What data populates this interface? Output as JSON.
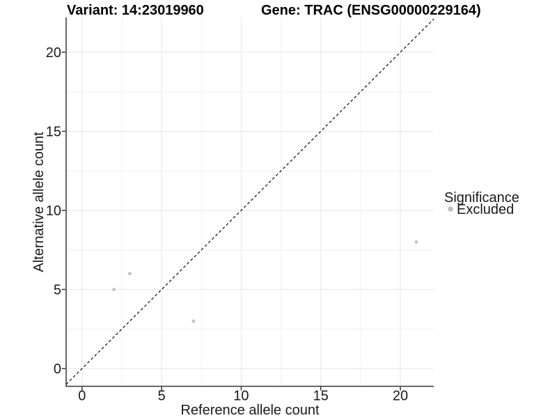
{
  "chart_data": {
    "type": "scatter",
    "titles": {
      "left": "Variant: 14:23019960",
      "right": "Gene: TRAC (ENSG00000229164)"
    },
    "xlabel": "Reference allele count",
    "ylabel": "Alternative allele count",
    "x_ticks": [
      0,
      5,
      10,
      15,
      20
    ],
    "y_ticks": [
      0,
      5,
      10,
      15,
      20
    ],
    "x_minor_gridlines": [
      2.5,
      7.5,
      12.5,
      17.5
    ],
    "y_minor_gridlines": [
      2.5,
      7.5,
      12.5,
      17.5
    ],
    "xlim": [
      -1.0,
      22.1
    ],
    "ylim": [
      -1.1,
      22.2
    ],
    "grid": true,
    "identity_line": {
      "equation": "y = x",
      "style": "dashed",
      "color": "#1a1a1a"
    },
    "series": [
      {
        "name": "Excluded",
        "color": "#bebebe",
        "points": [
          {
            "x": 2,
            "y": 5
          },
          {
            "x": 3,
            "y": 6
          },
          {
            "x": 7,
            "y": 3
          },
          {
            "x": 21,
            "y": 8
          }
        ]
      }
    ],
    "legend": {
      "title": "Significance",
      "position": "right",
      "entries": [
        {
          "label": "Excluded",
          "color": "#bebebe"
        }
      ]
    },
    "colors": {
      "axis_line": "#333333",
      "major_grid": "#e6e6e6",
      "minor_grid": "#f0f0f0",
      "point": "#bebebe"
    }
  }
}
